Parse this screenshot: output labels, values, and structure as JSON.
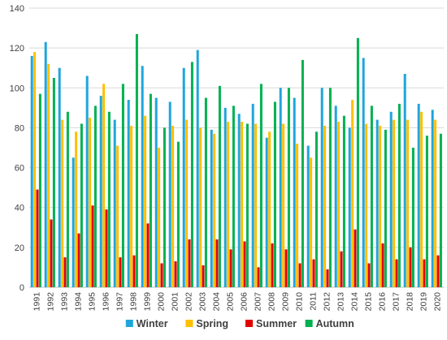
{
  "chart_data": {
    "type": "bar",
    "title": "",
    "xlabel": "",
    "ylabel": "",
    "ylim": [
      0,
      140
    ],
    "yticks": [
      0,
      20,
      40,
      60,
      80,
      100,
      120,
      140
    ],
    "grid": "horizontal",
    "legend": "bottom",
    "categories": [
      "1991",
      "1992",
      "1993",
      "1994",
      "1995",
      "1996",
      "1997",
      "1998",
      "1999",
      "2000",
      "2001",
      "2002",
      "2003",
      "2004",
      "2005",
      "2006",
      "2007",
      "2008",
      "2009",
      "2010",
      "2011",
      "2012",
      "2013",
      "2014",
      "2015",
      "2016",
      "2017",
      "2018",
      "2019",
      "2020"
    ],
    "series": [
      {
        "name": "Winter",
        "color": "#1fa5dc",
        "values": [
          116,
          123,
          110,
          65,
          106,
          96,
          84,
          94,
          111,
          95,
          93,
          110,
          119,
          79,
          90,
          87,
          92,
          75,
          100,
          95,
          71,
          100,
          91,
          80,
          115,
          84,
          88,
          107,
          92,
          89
        ]
      },
      {
        "name": "Spring",
        "color": "#ffc000",
        "values": [
          118,
          112,
          84,
          78,
          85,
          102,
          71,
          81,
          86,
          70,
          81,
          84,
          80,
          77,
          83,
          83,
          82,
          78,
          82,
          72,
          65,
          81,
          83,
          94,
          82,
          81,
          84,
          84,
          88,
          84
        ]
      },
      {
        "name": "Summer",
        "color": "#e00000",
        "values": [
          49,
          34,
          15,
          27,
          41,
          39,
          15,
          16,
          32,
          12,
          13,
          24,
          11,
          24,
          19,
          23,
          10,
          22,
          19,
          12,
          14,
          9,
          18,
          29,
          12,
          22,
          14,
          20,
          14,
          16
        ]
      },
      {
        "name": "Autumn",
        "color": "#00b050",
        "values": [
          97,
          105,
          88,
          82,
          91,
          88,
          102,
          127,
          97,
          80,
          73,
          113,
          95,
          101,
          91,
          82,
          102,
          93,
          100,
          114,
          78,
          100,
          86,
          125,
          91,
          79,
          92,
          70,
          76,
          77
        ]
      }
    ]
  }
}
